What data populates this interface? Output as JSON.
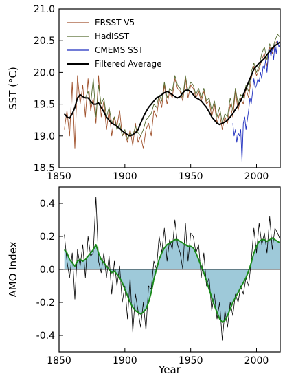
{
  "chart_data": [
    {
      "type": "line",
      "ylabel": "SST (°C)",
      "xlabel": "",
      "xlim": [
        1850,
        2018
      ],
      "ylim": [
        18.5,
        21.0
      ],
      "xticks": [
        "1850",
        "1900",
        "1950",
        "2000"
      ],
      "yticks": [
        "18.5",
        "19.0",
        "19.5",
        "20.0",
        "20.5",
        "21.0"
      ],
      "legend_position": "top-left",
      "series": [
        {
          "name": "ERSST V5",
          "color": "#a0522d",
          "x": [
            1854,
            1856,
            1858,
            1860,
            1862,
            1864,
            1866,
            1868,
            1870,
            1872,
            1874,
            1876,
            1878,
            1880,
            1882,
            1884,
            1886,
            1888,
            1890,
            1892,
            1894,
            1896,
            1898,
            1900,
            1902,
            1904,
            1906,
            1908,
            1910,
            1912,
            1914,
            1916,
            1918,
            1920,
            1922,
            1924,
            1926,
            1928,
            1930,
            1932,
            1934,
            1936,
            1938,
            1940,
            1942,
            1944,
            1946,
            1948,
            1950,
            1952,
            1954,
            1956,
            1958,
            1960,
            1962,
            1964,
            1966,
            1968,
            1970,
            1972,
            1974,
            1976,
            1978,
            1980,
            1982,
            1984,
            1986,
            1988,
            1990,
            1992,
            1994,
            1996,
            1998,
            2000,
            2002,
            2004,
            2006,
            2008,
            2010,
            2012,
            2014,
            2016
          ],
          "values": [
            19.1,
            19.4,
            19.0,
            19.85,
            18.8,
            19.95,
            19.5,
            19.8,
            19.3,
            19.9,
            19.4,
            19.6,
            19.2,
            19.95,
            19.3,
            19.55,
            19.1,
            19.4,
            19.0,
            19.3,
            19.15,
            19.4,
            19.0,
            19.05,
            18.9,
            19.1,
            18.85,
            19.2,
            18.9,
            19.0,
            18.8,
            19.1,
            19.2,
            19.0,
            19.4,
            19.3,
            19.6,
            19.45,
            19.8,
            19.5,
            19.7,
            19.6,
            19.9,
            19.75,
            19.7,
            19.55,
            19.9,
            19.6,
            19.8,
            19.75,
            19.6,
            19.7,
            19.55,
            19.7,
            19.5,
            19.55,
            19.3,
            19.5,
            19.2,
            19.35,
            19.1,
            19.3,
            19.2,
            19.5,
            19.3,
            19.7,
            19.4,
            19.6,
            19.5,
            19.75,
            19.6,
            19.9,
            20.1,
            19.95,
            20.05,
            20.2,
            20.3,
            20.1,
            20.4,
            20.3,
            20.45,
            20.5
          ]
        },
        {
          "name": "HadISST",
          "color": "#556b2f",
          "x": [
            1870,
            1872,
            1874,
            1876,
            1878,
            1880,
            1882,
            1884,
            1886,
            1888,
            1890,
            1892,
            1894,
            1896,
            1898,
            1900,
            1902,
            1904,
            1906,
            1908,
            1910,
            1912,
            1914,
            1916,
            1918,
            1920,
            1922,
            1924,
            1926,
            1928,
            1930,
            1932,
            1934,
            1936,
            1938,
            1940,
            1942,
            1944,
            1946,
            1948,
            1950,
            1952,
            1954,
            1956,
            1958,
            1960,
            1962,
            1964,
            1966,
            1968,
            1970,
            1972,
            1974,
            1976,
            1978,
            1980,
            1982,
            1984,
            1986,
            1988,
            1990,
            1992,
            1994,
            1996,
            1998,
            2000,
            2002,
            2004,
            2006,
            2008,
            2010,
            2012,
            2014,
            2016,
            2018
          ],
          "values": [
            19.6,
            19.7,
            19.5,
            19.9,
            19.3,
            19.8,
            19.5,
            19.6,
            19.3,
            19.45,
            19.2,
            19.3,
            19.1,
            19.2,
            19.0,
            19.1,
            18.95,
            19.05,
            19.0,
            19.15,
            19.05,
            19.0,
            19.1,
            19.25,
            19.3,
            19.35,
            19.5,
            19.45,
            19.65,
            19.55,
            19.85,
            19.6,
            19.75,
            19.7,
            19.95,
            19.8,
            19.75,
            19.6,
            19.95,
            19.7,
            19.85,
            19.8,
            19.65,
            19.75,
            19.6,
            19.75,
            19.55,
            19.6,
            19.4,
            19.55,
            19.3,
            19.45,
            19.2,
            19.35,
            19.3,
            19.6,
            19.4,
            19.75,
            19.5,
            19.65,
            19.6,
            19.8,
            19.7,
            20.0,
            20.15,
            20.0,
            20.1,
            20.3,
            20.4,
            20.2,
            20.45,
            20.35,
            20.5,
            20.6,
            20.55
          ]
        },
        {
          "name": "CMEMS SST",
          "color": "#1f2fbf",
          "x": [
            1982,
            1983,
            1984,
            1985,
            1986,
            1987,
            1988,
            1989,
            1990,
            1991,
            1992,
            1993,
            1994,
            1995,
            1996,
            1997,
            1998,
            1999,
            2000,
            2001,
            2002,
            2003,
            2004,
            2005,
            2006,
            2007,
            2008,
            2009,
            2010,
            2011,
            2012,
            2013,
            2014,
            2015,
            2016,
            2017,
            2018
          ],
          "values": [
            19.2,
            19.0,
            19.1,
            18.9,
            19.05,
            19.0,
            19.1,
            18.6,
            19.2,
            19.3,
            19.1,
            19.25,
            19.4,
            19.6,
            19.5,
            19.7,
            19.9,
            19.75,
            19.8,
            19.9,
            19.85,
            20.0,
            19.9,
            20.1,
            20.05,
            20.2,
            20.0,
            20.3,
            20.35,
            20.25,
            20.4,
            20.2,
            20.45,
            20.3,
            20.5,
            20.4,
            20.45
          ]
        },
        {
          "name": "Filtered Average",
          "color": "#000000",
          "x": [
            1854,
            1856,
            1858,
            1860,
            1862,
            1864,
            1866,
            1868,
            1870,
            1872,
            1874,
            1876,
            1878,
            1880,
            1882,
            1884,
            1886,
            1888,
            1890,
            1892,
            1894,
            1896,
            1898,
            1900,
            1902,
            1904,
            1906,
            1908,
            1910,
            1912,
            1914,
            1916,
            1918,
            1920,
            1922,
            1924,
            1926,
            1928,
            1930,
            1932,
            1934,
            1936,
            1938,
            1940,
            1942,
            1944,
            1946,
            1948,
            1950,
            1952,
            1954,
            1956,
            1958,
            1960,
            1962,
            1964,
            1966,
            1968,
            1970,
            1972,
            1974,
            1976,
            1978,
            1980,
            1982,
            1984,
            1986,
            1988,
            1990,
            1992,
            1994,
            1996,
            1998,
            2000,
            2002,
            2004,
            2006,
            2008,
            2010,
            2012,
            2014,
            2016,
            2018
          ],
          "values": [
            19.35,
            19.3,
            19.28,
            19.35,
            19.45,
            19.6,
            19.65,
            19.62,
            19.6,
            19.6,
            19.55,
            19.5,
            19.5,
            19.52,
            19.45,
            19.38,
            19.3,
            19.25,
            19.2,
            19.18,
            19.15,
            19.12,
            19.08,
            19.05,
            19.02,
            19.0,
            19.02,
            19.05,
            19.1,
            19.2,
            19.3,
            19.38,
            19.45,
            19.5,
            19.55,
            19.6,
            19.62,
            19.65,
            19.68,
            19.7,
            19.68,
            19.65,
            19.62,
            19.6,
            19.62,
            19.68,
            19.72,
            19.72,
            19.7,
            19.65,
            19.6,
            19.58,
            19.55,
            19.5,
            19.45,
            19.38,
            19.3,
            19.25,
            19.2,
            19.18,
            19.2,
            19.22,
            19.25,
            19.3,
            19.35,
            19.42,
            19.48,
            19.55,
            19.65,
            19.75,
            19.85,
            19.95,
            20.05,
            20.1,
            20.15,
            20.18,
            20.22,
            20.28,
            20.33,
            20.38,
            20.42,
            20.45,
            20.48
          ]
        }
      ]
    },
    {
      "type": "area",
      "ylabel": "AMO Index",
      "xlabel": "Year",
      "xlim": [
        1850,
        2018
      ],
      "ylim": [
        -0.5,
        0.5
      ],
      "xticks": [
        "1850",
        "1900",
        "1950",
        "2000"
      ],
      "yticks": [
        "-0.4",
        "-0.2",
        "0.0",
        "0.2",
        "0.4"
      ],
      "fill_color": "#9ec9d9",
      "series": [
        {
          "name": "",
          "color": "#000000",
          "x": [
            1854,
            1856,
            1858,
            1860,
            1862,
            1864,
            1866,
            1868,
            1870,
            1872,
            1874,
            1876,
            1878,
            1880,
            1882,
            1884,
            1886,
            1888,
            1890,
            1892,
            1894,
            1896,
            1898,
            1900,
            1902,
            1904,
            1906,
            1908,
            1910,
            1912,
            1914,
            1916,
            1918,
            1920,
            1922,
            1924,
            1926,
            1928,
            1930,
            1932,
            1934,
            1936,
            1938,
            1940,
            1942,
            1944,
            1946,
            1948,
            1950,
            1952,
            1954,
            1956,
            1958,
            1960,
            1962,
            1964,
            1966,
            1968,
            1970,
            1972,
            1974,
            1976,
            1978,
            1980,
            1982,
            1984,
            1986,
            1988,
            1990,
            1992,
            1994,
            1996,
            1998,
            2000,
            2002,
            2004,
            2006,
            2008,
            2010,
            2012,
            2014,
            2016,
            2018
          ],
          "values": [
            0.21,
            0.05,
            -0.05,
            0.1,
            -0.18,
            0.12,
            0.02,
            0.15,
            -0.05,
            0.2,
            0.08,
            0.1,
            0.44,
            0.05,
            -0.02,
            0.1,
            -0.05,
            0.08,
            -0.15,
            0.05,
            -0.1,
            0.02,
            -0.2,
            -0.1,
            -0.3,
            -0.05,
            -0.38,
            -0.15,
            -0.25,
            -0.35,
            -0.2,
            -0.37,
            -0.1,
            -0.12,
            0.05,
            0.0,
            0.2,
            0.1,
            0.25,
            0.05,
            0.18,
            0.12,
            0.3,
            0.15,
            0.1,
            0.0,
            0.28,
            0.05,
            0.22,
            0.2,
            0.1,
            0.15,
            -0.05,
            0.1,
            -0.1,
            -0.05,
            -0.25,
            -0.15,
            -0.3,
            -0.2,
            -0.43,
            -0.25,
            -0.35,
            -0.2,
            -0.28,
            -0.15,
            -0.2,
            -0.1,
            -0.15,
            -0.05,
            -0.1,
            0.05,
            0.25,
            0.1,
            0.28,
            0.15,
            0.22,
            0.1,
            0.32,
            0.12,
            0.25,
            0.22,
            0.18
          ]
        },
        {
          "name": "",
          "color": "#1a8a1a",
          "x": [
            1854,
            1856,
            1858,
            1860,
            1862,
            1864,
            1866,
            1868,
            1870,
            1872,
            1874,
            1876,
            1878,
            1880,
            1882,
            1884,
            1886,
            1888,
            1890,
            1892,
            1894,
            1896,
            1898,
            1900,
            1902,
            1904,
            1906,
            1908,
            1910,
            1912,
            1914,
            1916,
            1918,
            1920,
            1922,
            1924,
            1926,
            1928,
            1930,
            1932,
            1934,
            1936,
            1938,
            1940,
            1942,
            1944,
            1946,
            1948,
            1950,
            1952,
            1954,
            1956,
            1958,
            1960,
            1962,
            1964,
            1966,
            1968,
            1970,
            1972,
            1974,
            1976,
            1978,
            1980,
            1982,
            1984,
            1986,
            1988,
            1990,
            1992,
            1994,
            1996,
            1998,
            2000,
            2002,
            2004,
            2006,
            2008,
            2010,
            2012,
            2014,
            2016,
            2018
          ],
          "values": [
            0.12,
            0.1,
            0.06,
            0.04,
            0.02,
            0.05,
            0.06,
            0.05,
            0.06,
            0.08,
            0.1,
            0.12,
            0.15,
            0.1,
            0.06,
            0.04,
            0.02,
            0.0,
            -0.02,
            -0.01,
            -0.03,
            -0.05,
            -0.08,
            -0.12,
            -0.16,
            -0.2,
            -0.23,
            -0.25,
            -0.26,
            -0.27,
            -0.26,
            -0.24,
            -0.2,
            -0.14,
            -0.06,
            0.0,
            0.06,
            0.1,
            0.13,
            0.15,
            0.16,
            0.17,
            0.18,
            0.18,
            0.17,
            0.16,
            0.15,
            0.14,
            0.14,
            0.13,
            0.1,
            0.06,
            0.02,
            -0.02,
            -0.07,
            -0.12,
            -0.17,
            -0.22,
            -0.26,
            -0.3,
            -0.32,
            -0.31,
            -0.28,
            -0.24,
            -0.2,
            -0.17,
            -0.14,
            -0.11,
            -0.08,
            -0.05,
            -0.01,
            0.04,
            0.1,
            0.14,
            0.17,
            0.18,
            0.18,
            0.17,
            0.18,
            0.19,
            0.18,
            0.17,
            0.16
          ]
        }
      ]
    }
  ]
}
